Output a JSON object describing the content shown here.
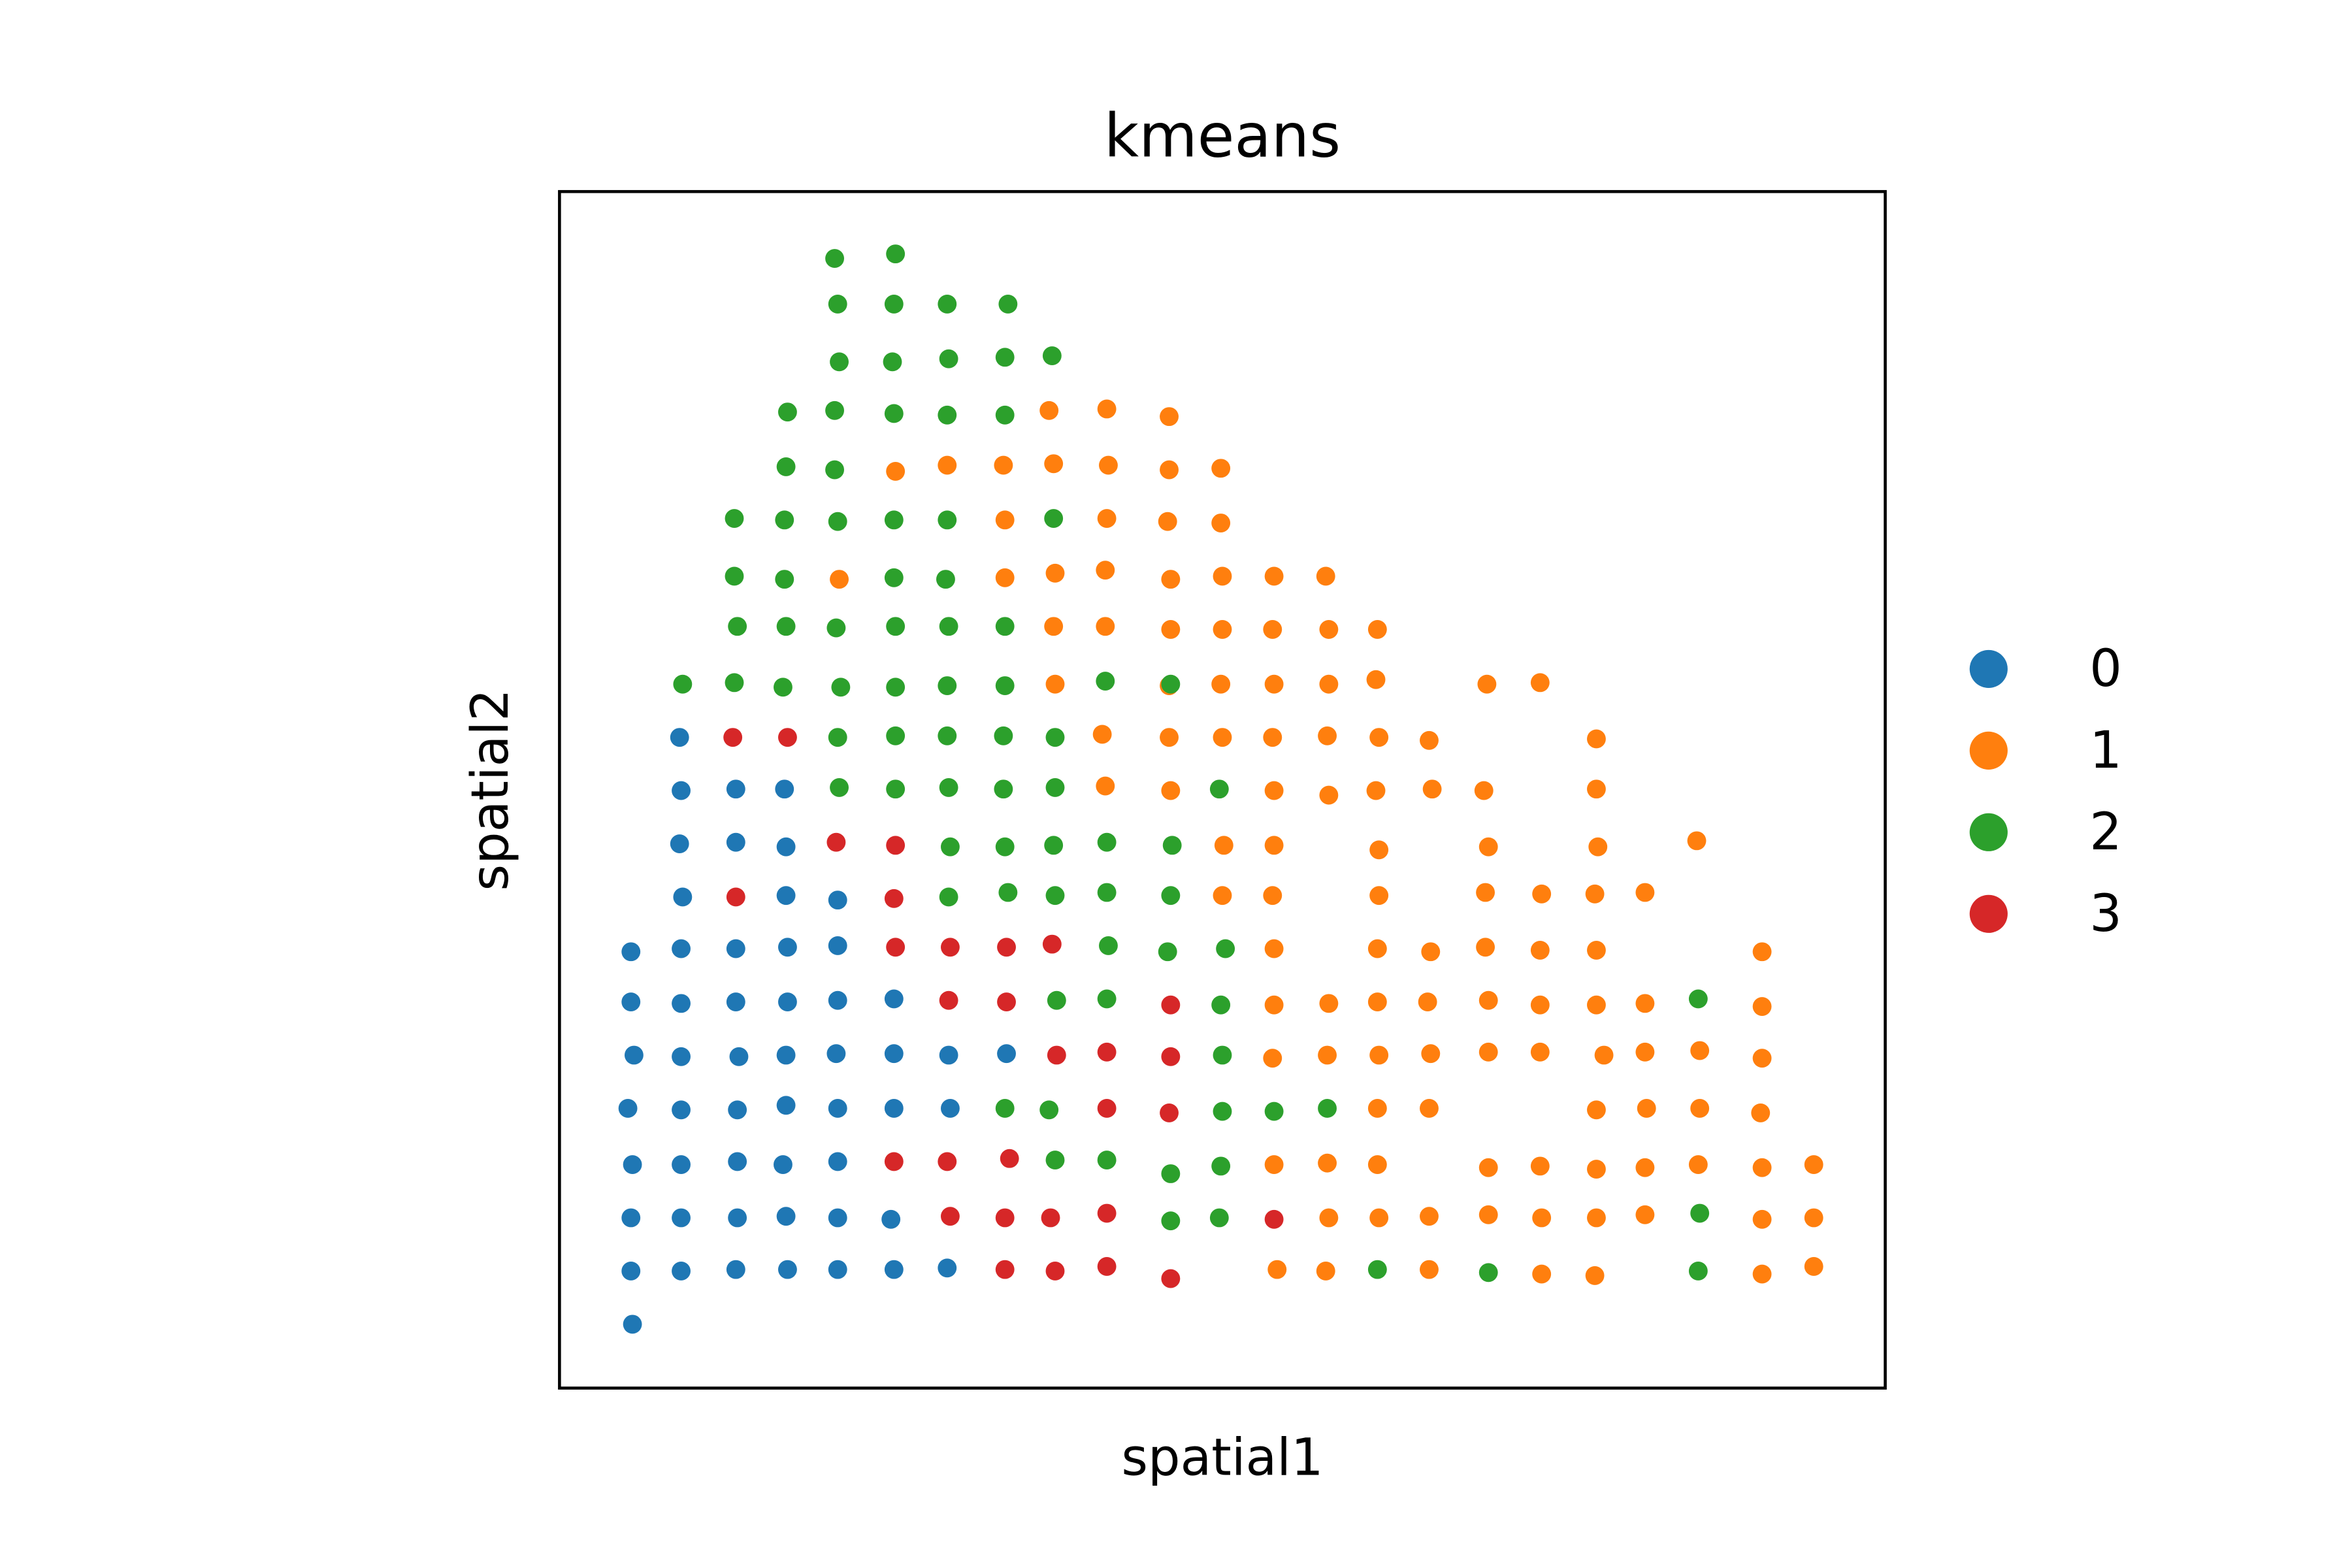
{
  "chart_data": {
    "type": "scatter",
    "title": "kmeans",
    "xlabel": "spatial1",
    "ylabel": "spatial2",
    "xticks": "none",
    "yticks": "none",
    "grid": false,
    "legend_position": "right",
    "xlim": [
      368,
      1240
    ],
    "ylim": [
      913,
      126
    ],
    "series": [
      {
        "name": "0",
        "color": "#1f77b4",
        "points": [
          [
            447,
            485
          ],
          [
            448,
            520
          ],
          [
            484,
            519
          ],
          [
            516,
            519
          ],
          [
            447,
            555
          ],
          [
            484,
            554
          ],
          [
            517,
            557
          ],
          [
            449,
            590
          ],
          [
            517,
            589
          ],
          [
            551,
            592
          ],
          [
            415,
            626
          ],
          [
            448,
            624
          ],
          [
            484,
            624
          ],
          [
            518,
            623
          ],
          [
            551,
            622
          ],
          [
            415,
            659
          ],
          [
            448,
            660
          ],
          [
            484,
            659
          ],
          [
            518,
            659
          ],
          [
            551,
            658
          ],
          [
            588,
            657
          ],
          [
            417,
            694
          ],
          [
            448,
            695
          ],
          [
            486,
            695
          ],
          [
            517,
            694
          ],
          [
            550,
            693
          ],
          [
            588,
            693
          ],
          [
            624,
            694
          ],
          [
            662,
            693
          ],
          [
            413,
            729
          ],
          [
            448,
            730
          ],
          [
            485,
            730
          ],
          [
            517,
            727
          ],
          [
            551,
            729
          ],
          [
            588,
            729
          ],
          [
            625,
            729
          ],
          [
            416,
            766
          ],
          [
            448,
            766
          ],
          [
            485,
            764
          ],
          [
            515,
            766
          ],
          [
            551,
            764
          ],
          [
            415,
            801
          ],
          [
            448,
            801
          ],
          [
            485,
            801
          ],
          [
            517,
            800
          ],
          [
            551,
            801
          ],
          [
            586,
            802
          ],
          [
            415,
            836
          ],
          [
            448,
            836
          ],
          [
            484,
            835
          ],
          [
            518,
            835
          ],
          [
            551,
            835
          ],
          [
            588,
            835
          ],
          [
            623,
            834
          ],
          [
            416,
            871
          ]
        ]
      },
      {
        "name": "1",
        "color": "#ff7f0e",
        "points": [
          [
            690,
            270
          ],
          [
            728,
            269
          ],
          [
            769,
            274
          ],
          [
            589,
            310
          ],
          [
            623,
            306
          ],
          [
            660,
            306
          ],
          [
            693,
            305
          ],
          [
            729,
            306
          ],
          [
            769,
            309
          ],
          [
            803,
            308
          ],
          [
            661,
            342
          ],
          [
            728,
            341
          ],
          [
            768,
            343
          ],
          [
            803,
            344
          ],
          [
            552,
            381
          ],
          [
            661,
            380
          ],
          [
            694,
            377
          ],
          [
            727,
            375
          ],
          [
            770,
            381
          ],
          [
            804,
            379
          ],
          [
            838,
            379
          ],
          [
            872,
            379
          ],
          [
            693,
            412
          ],
          [
            727,
            412
          ],
          [
            770,
            414
          ],
          [
            804,
            414
          ],
          [
            837,
            414
          ],
          [
            874,
            414
          ],
          [
            906,
            414
          ],
          [
            694,
            450
          ],
          [
            769,
            451
          ],
          [
            803,
            450
          ],
          [
            838,
            450
          ],
          [
            874,
            450
          ],
          [
            905,
            447
          ],
          [
            978,
            450
          ],
          [
            1013,
            449
          ],
          [
            725,
            483
          ],
          [
            769,
            485
          ],
          [
            804,
            485
          ],
          [
            837,
            485
          ],
          [
            873,
            484
          ],
          [
            907,
            485
          ],
          [
            940,
            487
          ],
          [
            1050,
            486
          ],
          [
            727,
            517
          ],
          [
            770,
            520
          ],
          [
            838,
            520
          ],
          [
            874,
            523
          ],
          [
            905,
            520
          ],
          [
            942,
            519
          ],
          [
            976,
            520
          ],
          [
            1050,
            519
          ],
          [
            805,
            556
          ],
          [
            838,
            556
          ],
          [
            907,
            559
          ],
          [
            979,
            557
          ],
          [
            1051,
            557
          ],
          [
            1116,
            553
          ],
          [
            804,
            589
          ],
          [
            837,
            589
          ],
          [
            907,
            589
          ],
          [
            977,
            587
          ],
          [
            1014,
            588
          ],
          [
            1049,
            588
          ],
          [
            1082,
            587
          ],
          [
            838,
            624
          ],
          [
            906,
            624
          ],
          [
            941,
            626
          ],
          [
            977,
            623
          ],
          [
            1013,
            625
          ],
          [
            1050,
            625
          ],
          [
            1159,
            626
          ],
          [
            838,
            661
          ],
          [
            874,
            660
          ],
          [
            906,
            659
          ],
          [
            939,
            659
          ],
          [
            979,
            658
          ],
          [
            1013,
            661
          ],
          [
            1050,
            661
          ],
          [
            1082,
            660
          ],
          [
            1159,
            662
          ],
          [
            837,
            696
          ],
          [
            873,
            694
          ],
          [
            907,
            694
          ],
          [
            941,
            693
          ],
          [
            979,
            692
          ],
          [
            1013,
            692
          ],
          [
            1055,
            694
          ],
          [
            1082,
            692
          ],
          [
            1118,
            691
          ],
          [
            1159,
            696
          ],
          [
            906,
            729
          ],
          [
            940,
            729
          ],
          [
            1050,
            730
          ],
          [
            1083,
            729
          ],
          [
            1118,
            729
          ],
          [
            1158,
            732
          ],
          [
            838,
            766
          ],
          [
            873,
            765
          ],
          [
            906,
            766
          ],
          [
            979,
            768
          ],
          [
            1013,
            767
          ],
          [
            1050,
            769
          ],
          [
            1082,
            768
          ],
          [
            1117,
            766
          ],
          [
            1159,
            768
          ],
          [
            1193,
            766
          ],
          [
            874,
            801
          ],
          [
            907,
            801
          ],
          [
            940,
            800
          ],
          [
            979,
            799
          ],
          [
            1014,
            801
          ],
          [
            1050,
            801
          ],
          [
            1082,
            799
          ],
          [
            1159,
            802
          ],
          [
            1193,
            801
          ],
          [
            840,
            835
          ],
          [
            872,
            836
          ],
          [
            940,
            835
          ],
          [
            1014,
            838
          ],
          [
            1049,
            839
          ],
          [
            1159,
            838
          ],
          [
            1193,
            833
          ]
        ]
      },
      {
        "name": "2",
        "color": "#2ca02c",
        "points": [
          [
            549,
            170
          ],
          [
            589,
            167
          ],
          [
            551,
            200
          ],
          [
            588,
            200
          ],
          [
            623,
            200
          ],
          [
            663,
            200
          ],
          [
            552,
            238
          ],
          [
            587,
            238
          ],
          [
            624,
            236
          ],
          [
            661,
            235
          ],
          [
            692,
            234
          ],
          [
            518,
            271
          ],
          [
            549,
            270
          ],
          [
            588,
            272
          ],
          [
            623,
            273
          ],
          [
            661,
            273
          ],
          [
            517,
            307
          ],
          [
            549,
            309
          ],
          [
            483,
            341
          ],
          [
            516,
            342
          ],
          [
            551,
            343
          ],
          [
            588,
            342
          ],
          [
            623,
            342
          ],
          [
            693,
            341
          ],
          [
            483,
            379
          ],
          [
            516,
            381
          ],
          [
            588,
            380
          ],
          [
            622,
            381
          ],
          [
            485,
            412
          ],
          [
            517,
            412
          ],
          [
            550,
            413
          ],
          [
            589,
            412
          ],
          [
            624,
            412
          ],
          [
            661,
            412
          ],
          [
            449,
            450
          ],
          [
            483,
            449
          ],
          [
            515,
            452
          ],
          [
            553,
            452
          ],
          [
            589,
            452
          ],
          [
            623,
            451
          ],
          [
            661,
            451
          ],
          [
            727,
            448
          ],
          [
            770,
            450
          ],
          [
            551,
            485
          ],
          [
            589,
            484
          ],
          [
            623,
            484
          ],
          [
            660,
            484
          ],
          [
            694,
            485
          ],
          [
            552,
            518
          ],
          [
            589,
            519
          ],
          [
            624,
            518
          ],
          [
            660,
            519
          ],
          [
            694,
            518
          ],
          [
            802,
            519
          ],
          [
            625,
            557
          ],
          [
            661,
            557
          ],
          [
            693,
            556
          ],
          [
            728,
            554
          ],
          [
            771,
            556
          ],
          [
            624,
            590
          ],
          [
            663,
            587
          ],
          [
            694,
            589
          ],
          [
            728,
            587
          ],
          [
            770,
            589
          ],
          [
            729,
            622
          ],
          [
            768,
            626
          ],
          [
            806,
            624
          ],
          [
            695,
            658
          ],
          [
            728,
            657
          ],
          [
            803,
            661
          ],
          [
            804,
            694
          ],
          [
            661,
            729
          ],
          [
            690,
            730
          ],
          [
            804,
            731
          ],
          [
            838,
            731
          ],
          [
            873,
            729
          ],
          [
            694,
            763
          ],
          [
            728,
            763
          ],
          [
            770,
            772
          ],
          [
            803,
            767
          ],
          [
            770,
            803
          ],
          [
            802,
            801
          ],
          [
            1118,
            798
          ],
          [
            906,
            835
          ],
          [
            979,
            837
          ],
          [
            1117,
            836
          ],
          [
            1117,
            657
          ]
        ]
      },
      {
        "name": "3",
        "color": "#d62728",
        "points": [
          [
            482,
            485
          ],
          [
            518,
            485
          ],
          [
            550,
            554
          ],
          [
            589,
            556
          ],
          [
            484,
            590
          ],
          [
            588,
            591
          ],
          [
            589,
            623
          ],
          [
            625,
            623
          ],
          [
            662,
            623
          ],
          [
            692,
            621
          ],
          [
            624,
            658
          ],
          [
            662,
            659
          ],
          [
            770,
            661
          ],
          [
            695,
            694
          ],
          [
            728,
            692
          ],
          [
            770,
            695
          ],
          [
            728,
            729
          ],
          [
            769,
            732
          ],
          [
            588,
            764
          ],
          [
            623,
            764
          ],
          [
            664,
            762
          ],
          [
            625,
            800
          ],
          [
            661,
            801
          ],
          [
            691,
            801
          ],
          [
            728,
            798
          ],
          [
            838,
            802
          ],
          [
            661,
            835
          ],
          [
            694,
            836
          ],
          [
            728,
            833
          ],
          [
            770,
            841
          ]
        ]
      }
    ]
  }
}
